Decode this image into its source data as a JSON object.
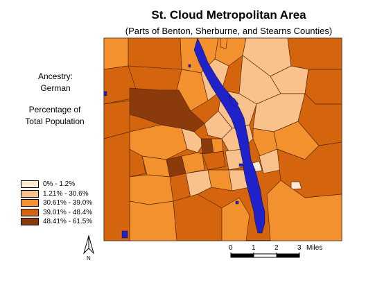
{
  "title": "St. Cloud Metropolitan Area",
  "subtitle": "(Parts of Benton, Sherburne, and Stearns Counties)",
  "variable": {
    "label": "Ancestry:",
    "value": "German"
  },
  "measure": {
    "line1": "Percentage of",
    "line2": "Total Population"
  },
  "legend": {
    "classes": [
      {
        "label": "0% - 1.2%",
        "color": "#fde9d4"
      },
      {
        "label": "1.21% - 30.6%",
        "color": "#f9c28c"
      },
      {
        "label": "30.61% - 39.0%",
        "color": "#f3912e"
      },
      {
        "label": "39.01% - 48.4%",
        "color": "#d4650e"
      },
      {
        "label": "48.41% - 61.5%",
        "color": "#8b3a0b"
      }
    ]
  },
  "scale_bar": {
    "ticks": [
      "0",
      "1",
      "2",
      "3"
    ],
    "unit": "Miles"
  },
  "north_arrow": {
    "label": "N",
    "icon": "north-arrow-icon"
  },
  "colors": {
    "water": "#1f22c8",
    "border": "#000000"
  }
}
